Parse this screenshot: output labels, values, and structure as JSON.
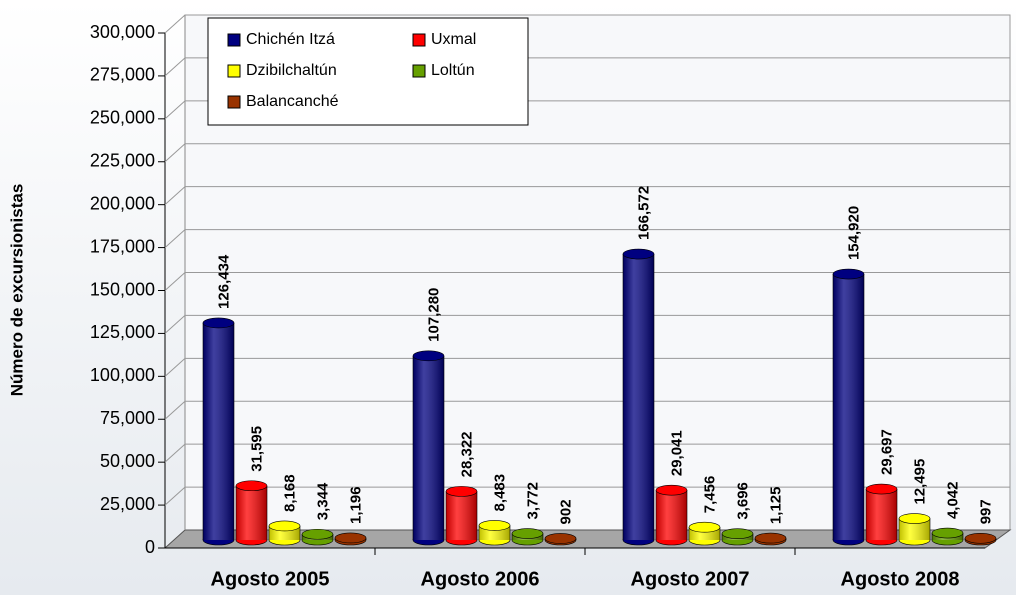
{
  "chart_data": {
    "type": "bar3d",
    "y_label": "Número de excursionistas",
    "categories": [
      "Agosto 2005",
      "Agosto 2006",
      "Agosto 2007",
      "Agosto 2008"
    ],
    "series": [
      {
        "name": "Chichén Itzá",
        "color": "#000080",
        "values": [
          126434,
          107280,
          166572,
          154920
        ],
        "value_labels": [
          "126,434",
          "107,280",
          "166,572",
          "154,920"
        ]
      },
      {
        "name": "Uxmal",
        "color": "#ff0000",
        "values": [
          31595,
          28322,
          29041,
          29697
        ],
        "value_labels": [
          "31,595",
          "28,322",
          "29,041",
          "29,697"
        ]
      },
      {
        "name": "Dzibilchaltún",
        "color": "#ffff00",
        "values": [
          8168,
          8483,
          7456,
          12495
        ],
        "value_labels": [
          "8,168",
          "8,483",
          "7,456",
          "12,495"
        ]
      },
      {
        "name": "Loltún",
        "color": "#66a000",
        "values": [
          3344,
          3772,
          3696,
          4042
        ],
        "value_labels": [
          "3,344",
          "3,772",
          "3,696",
          "4,042"
        ]
      },
      {
        "name": "Balancanché",
        "color": "#993300",
        "values": [
          1196,
          902,
          1125,
          997
        ],
        "value_labels": [
          "1,196",
          "902",
          "1,125",
          "997"
        ]
      }
    ],
    "ylim": [
      0,
      300000
    ],
    "yticks": [
      0,
      {
        "value": 25000,
        "label": "25,000"
      },
      {
        "value": 50000,
        "label": "50,000"
      },
      {
        "value": 75000,
        "label": "75,000"
      },
      {
        "value": 100000,
        "label": "100,000"
      },
      {
        "value": 125000,
        "label": "125,000"
      },
      {
        "value": 150000,
        "label": "150,000"
      },
      {
        "value": 175000,
        "label": "175,000"
      },
      {
        "value": 200000,
        "label": "200,000"
      },
      {
        "value": 225000,
        "label": "225,000"
      },
      {
        "value": 250000,
        "label": "250,000"
      },
      {
        "value": 275000,
        "label": "275,000"
      },
      {
        "value": 300000,
        "label": "300,000"
      }
    ],
    "grid": true
  }
}
